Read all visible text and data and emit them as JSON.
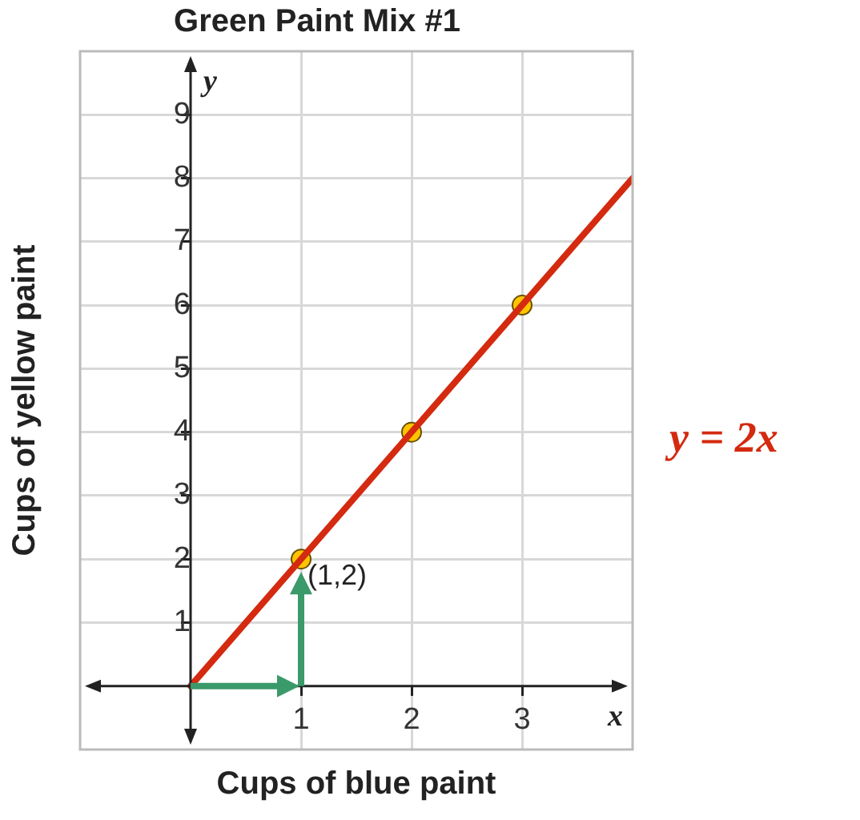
{
  "chart_data": {
    "type": "line",
    "title": "Green Paint Mix #1",
    "xlabel": "Cups of blue paint",
    "ylabel": "Cups of yellow paint",
    "series": [
      {
        "color": "#d42a10",
        "x": [
          0,
          4
        ],
        "values": [
          0,
          8
        ],
        "marker": "none"
      },
      {
        "type": "scatter",
        "color": "#ffc400",
        "x": [
          1,
          2,
          3
        ],
        "values": [
          2,
          4,
          6
        ],
        "marker": "circle"
      }
    ],
    "xlim": [
      -1,
      4
    ],
    "ylim": [
      -1,
      10
    ],
    "xticks": [
      1,
      2,
      3
    ],
    "yticks": [
      1,
      2,
      3,
      4,
      5,
      6,
      7,
      8,
      9
    ],
    "grid": true,
    "legend": false,
    "annotations": [
      "y = 2x",
      {
        "text": "(1,2)",
        "x": 1,
        "y": 2
      },
      "x",
      "y"
    ]
  }
}
